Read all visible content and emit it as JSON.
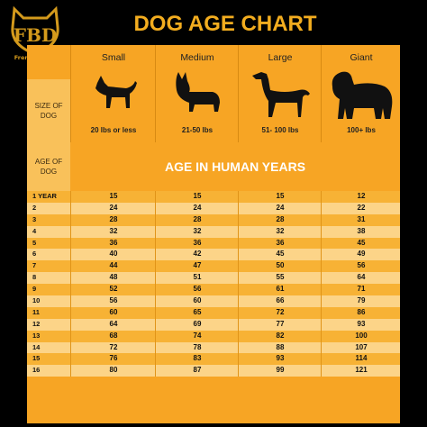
{
  "logo": {
    "letters": "FBD",
    "caption": "Frenchie FBD"
  },
  "title": "DOG AGE CHART",
  "size_label": "SIZE OF DOG",
  "age_label": "AGE OF DOG",
  "human_years_title": "AGE IN HUMAN YEARS",
  "breeds": [
    {
      "name": "Small",
      "weight": "20 lbs or less",
      "icon": "small-dog-icon"
    },
    {
      "name": "Medium",
      "weight": "21-50 lbs",
      "icon": "medium-dog-icon"
    },
    {
      "name": "Large",
      "weight": "51- 100 lbs",
      "icon": "large-dog-icon"
    },
    {
      "name": "Giant",
      "weight": "100+ lbs",
      "icon": "giant-dog-icon"
    }
  ],
  "rows": [
    {
      "age": "1 YEAR",
      "small": "15",
      "medium": "15",
      "large": "15",
      "giant": "12"
    },
    {
      "age": "2",
      "small": "24",
      "medium": "24",
      "large": "24",
      "giant": "22"
    },
    {
      "age": "3",
      "small": "28",
      "medium": "28",
      "large": "28",
      "giant": "31"
    },
    {
      "age": "4",
      "small": "32",
      "medium": "32",
      "large": "32",
      "giant": "38"
    },
    {
      "age": "5",
      "small": "36",
      "medium": "36",
      "large": "36",
      "giant": "45"
    },
    {
      "age": "6",
      "small": "40",
      "medium": "42",
      "large": "45",
      "giant": "49"
    },
    {
      "age": "7",
      "small": "44",
      "medium": "47",
      "large": "50",
      "giant": "56"
    },
    {
      "age": "8",
      "small": "48",
      "medium": "51",
      "large": "55",
      "giant": "64"
    },
    {
      "age": "9",
      "small": "52",
      "medium": "56",
      "large": "61",
      "giant": "71"
    },
    {
      "age": "10",
      "small": "56",
      "medium": "60",
      "large": "66",
      "giant": "79"
    },
    {
      "age": "11",
      "small": "60",
      "medium": "65",
      "large": "72",
      "giant": "86"
    },
    {
      "age": "12",
      "small": "64",
      "medium": "69",
      "large": "77",
      "giant": "93"
    },
    {
      "age": "13",
      "small": "68",
      "medium": "74",
      "large": "82",
      "giant": "100"
    },
    {
      "age": "14",
      "small": "72",
      "medium": "78",
      "large": "88",
      "giant": "107"
    },
    {
      "age": "15",
      "small": "76",
      "medium": "83",
      "large": "93",
      "giant": "114"
    },
    {
      "age": "16",
      "small": "80",
      "medium": "87",
      "large": "99",
      "giant": "121"
    }
  ],
  "colors": {
    "accent": "#f3ad1f",
    "band": "#f7a524",
    "row_odd": "#f7b235",
    "row_even": "#fcd488"
  }
}
